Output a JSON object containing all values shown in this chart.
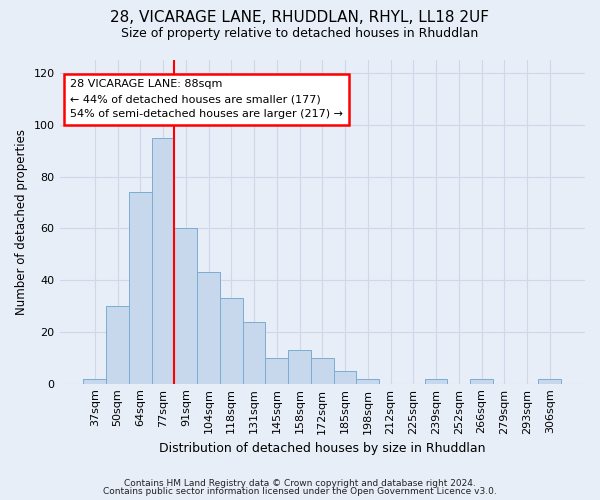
{
  "title": "28, VICARAGE LANE, RHUDDLAN, RHYL, LL18 2UF",
  "subtitle": "Size of property relative to detached houses in Rhuddlan",
  "xlabel": "Distribution of detached houses by size in Rhuddlan",
  "ylabel": "Number of detached properties",
  "bar_color": "#c8d8ec",
  "bar_edge_color": "#7aadd4",
  "categories": [
    "37sqm",
    "50sqm",
    "64sqm",
    "77sqm",
    "91sqm",
    "104sqm",
    "118sqm",
    "131sqm",
    "145sqm",
    "158sqm",
    "172sqm",
    "185sqm",
    "198sqm",
    "212sqm",
    "225sqm",
    "239sqm",
    "252sqm",
    "266sqm",
    "279sqm",
    "293sqm",
    "306sqm"
  ],
  "values": [
    2,
    30,
    74,
    95,
    60,
    43,
    33,
    24,
    10,
    13,
    10,
    5,
    2,
    0,
    0,
    2,
    0,
    2,
    0,
    0,
    2
  ],
  "ylim": [
    0,
    125
  ],
  "yticks": [
    0,
    20,
    40,
    60,
    80,
    100,
    120
  ],
  "vline_index": 4,
  "vline_color": "red",
  "marker_label": "28 VICARAGE LANE: 88sqm",
  "annotation_line1": "← 44% of detached houses are smaller (177)",
  "annotation_line2": "54% of semi-detached houses are larger (217) →",
  "annotation_box_facecolor": "white",
  "annotation_box_edgecolor": "red",
  "grid_color": "#d0d8e8",
  "background_color": "#e8eef8",
  "footer_line1": "Contains HM Land Registry data © Crown copyright and database right 2024.",
  "footer_line2": "Contains public sector information licensed under the Open Government Licence v3.0."
}
